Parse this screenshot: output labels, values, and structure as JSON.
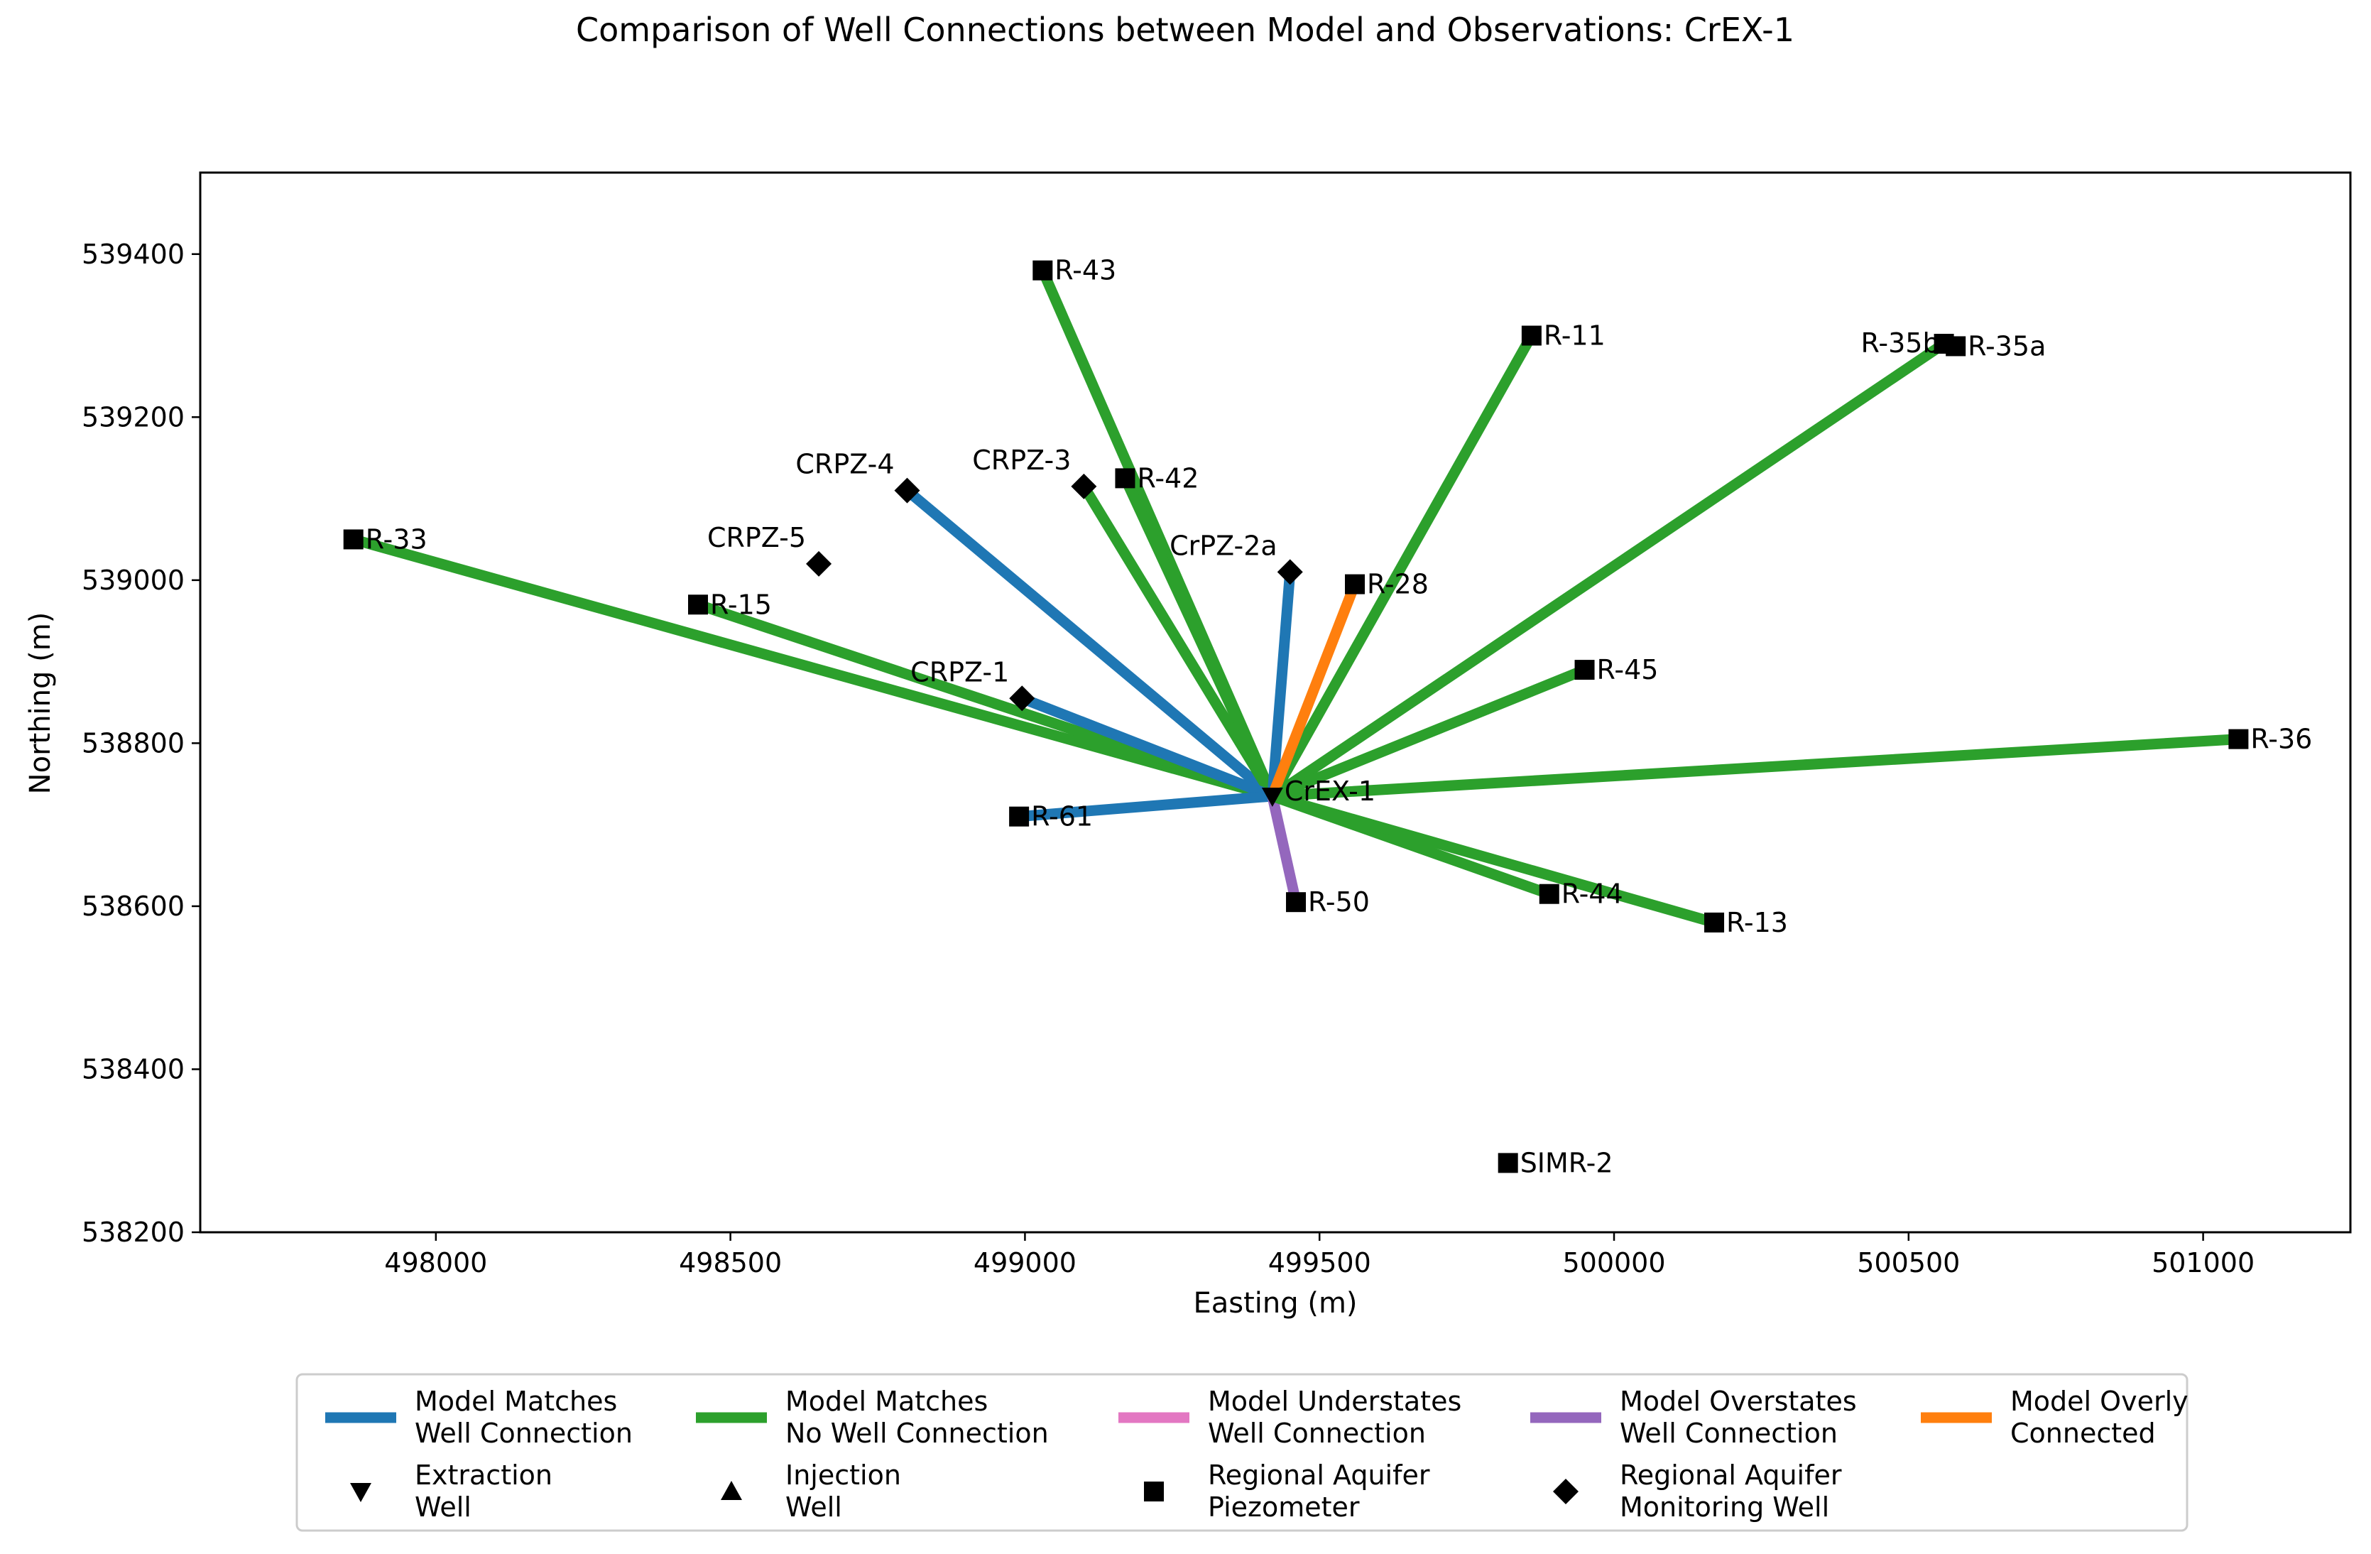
{
  "chart_data": {
    "type": "network-map",
    "title": "Comparison of Well Connections between Model and Observations: CrEX-1",
    "xlabel": "Easting (m)",
    "ylabel": "Northing (m)",
    "xlim": [
      497600,
      501250
    ],
    "ylim": [
      538200,
      539500
    ],
    "xticks": [
      498000,
      498500,
      499000,
      499500,
      500000,
      500500,
      501000
    ],
    "yticks": [
      538200,
      538400,
      538600,
      538800,
      539000,
      539200,
      539400
    ],
    "category_colors": {
      "match_connection": "#1f77b4",
      "match_no_connection": "#2ca02c",
      "understates": "#e377c2",
      "overstates": "#9467bd",
      "overly_connected": "#ff7f0e"
    },
    "center_well": {
      "name": "CrEX-1",
      "x": 499420,
      "y": 538735,
      "type": "extraction"
    },
    "wells": [
      {
        "name": "R-43",
        "x": 499030,
        "y": 539380,
        "type": "piezometer",
        "connection": "match_no_connection"
      },
      {
        "name": "R-11",
        "x": 499860,
        "y": 539300,
        "type": "piezometer",
        "connection": "match_no_connection"
      },
      {
        "name": "R-35b",
        "x": 500560,
        "y": 539290,
        "type": "piezometer",
        "connection": "match_no_connection"
      },
      {
        "name": "R-35a",
        "x": 500580,
        "y": 539287,
        "type": "piezometer",
        "connection": null
      },
      {
        "name": "R-42",
        "x": 499170,
        "y": 539125,
        "type": "piezometer",
        "connection": "match_no_connection"
      },
      {
        "name": "CRPZ-4",
        "x": 498800,
        "y": 539110,
        "type": "monitoring",
        "connection": "match_connection"
      },
      {
        "name": "CRPZ-3",
        "x": 499100,
        "y": 539115,
        "type": "monitoring",
        "connection": "match_no_connection"
      },
      {
        "name": "R-33",
        "x": 497860,
        "y": 539050,
        "type": "piezometer",
        "connection": "match_no_connection"
      },
      {
        "name": "CRPZ-5",
        "x": 498650,
        "y": 539020,
        "type": "monitoring",
        "connection": null
      },
      {
        "name": "CrPZ-2a",
        "x": 499450,
        "y": 539010,
        "type": "monitoring",
        "connection": "match_connection"
      },
      {
        "name": "R-28",
        "x": 499560,
        "y": 538995,
        "type": "piezometer",
        "connection": "overly_connected"
      },
      {
        "name": "R-15",
        "x": 498445,
        "y": 538970,
        "type": "piezometer",
        "connection": "match_no_connection"
      },
      {
        "name": "R-45",
        "x": 499950,
        "y": 538890,
        "type": "piezometer",
        "connection": "match_no_connection"
      },
      {
        "name": "CRPZ-1",
        "x": 498995,
        "y": 538855,
        "type": "monitoring",
        "connection": "match_connection"
      },
      {
        "name": "R-36",
        "x": 501060,
        "y": 538805,
        "type": "piezometer",
        "connection": "match_no_connection"
      },
      {
        "name": "R-61",
        "x": 498990,
        "y": 538710,
        "type": "piezometer",
        "connection": "match_connection"
      },
      {
        "name": "R-50",
        "x": 499460,
        "y": 538605,
        "type": "piezometer",
        "connection": "overstates"
      },
      {
        "name": "R-44",
        "x": 499890,
        "y": 538615,
        "type": "piezometer",
        "connection": "match_no_connection"
      },
      {
        "name": "R-13",
        "x": 500170,
        "y": 538580,
        "type": "piezometer",
        "connection": "match_no_connection"
      },
      {
        "name": "SIMR-2",
        "x": 499820,
        "y": 538285,
        "type": "piezometer",
        "connection": null
      }
    ],
    "legend": {
      "placement": "bottom-center",
      "entries": [
        {
          "line1": "Model Matches",
          "line2": "Well Connection",
          "symbol": "line",
          "key": "match_connection"
        },
        {
          "line1": "Model Matches",
          "line2": "No Well Connection",
          "symbol": "line",
          "key": "match_no_connection"
        },
        {
          "line1": "Model Understates",
          "line2": "Well Connection",
          "symbol": "line",
          "key": "understates"
        },
        {
          "line1": "Model Overstates",
          "line2": "Well Connection",
          "symbol": "line",
          "key": "overstates"
        },
        {
          "line1": "Model Overly",
          "line2": "Connected",
          "symbol": "line",
          "key": "overly_connected"
        },
        {
          "line1": "Extraction",
          "line2": "Well",
          "symbol": "triangle-down",
          "key": "extraction"
        },
        {
          "line1": "Injection",
          "line2": "Well",
          "symbol": "triangle-up",
          "key": "injection"
        },
        {
          "line1": "Regional Aquifer",
          "line2": "Piezometer",
          "symbol": "square",
          "key": "piezometer"
        },
        {
          "line1": "Regional Aquifer",
          "line2": "Monitoring Well",
          "symbol": "diamond",
          "key": "monitoring"
        }
      ]
    }
  }
}
